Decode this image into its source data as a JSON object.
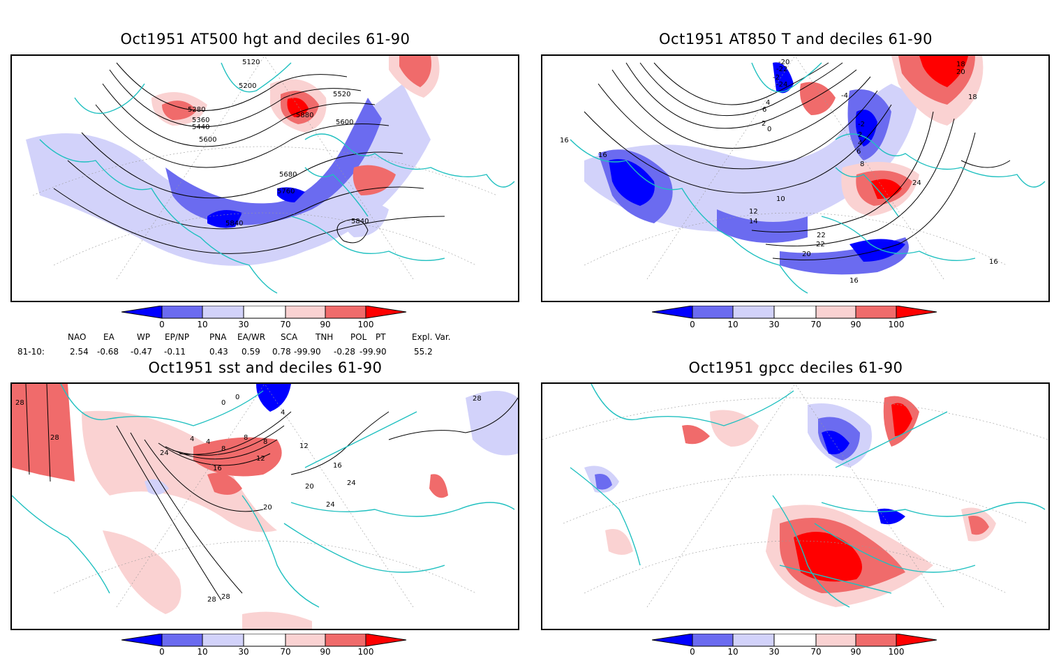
{
  "panels": [
    {
      "id": "at500",
      "title": "Oct1951 AT500 hgt and deciles 61-90",
      "contour_labels": [
        "5120",
        "5200",
        "5280",
        "5360",
        "5440",
        "5520",
        "5600",
        "5680",
        "5760",
        "5840",
        "5880",
        "5600",
        "5840"
      ]
    },
    {
      "id": "at850",
      "title": "Oct1951 AT850 T and deciles 61-90",
      "contour_labels": [
        "-20",
        "-22",
        "-24",
        "-2",
        "0",
        "2",
        "4",
        "6",
        "8",
        "10",
        "12",
        "14",
        "16",
        "18",
        "20",
        "22",
        "24",
        "-4",
        "-2",
        "2",
        "4",
        "6",
        "16",
        "16",
        "18",
        "16",
        "20",
        "22"
      ]
    },
    {
      "id": "sst",
      "title": "Oct1951 sst and deciles 61-90",
      "contour_labels": [
        "28",
        "28",
        "24",
        "20",
        "16",
        "12",
        "8",
        "4",
        "8",
        "4",
        "0",
        "0",
        "4",
        "8",
        "12",
        "20",
        "24",
        "16",
        "28",
        "28",
        "28",
        "24"
      ]
    },
    {
      "id": "gpcc",
      "title": "Oct1951 gpcc deciles 61-90",
      "contour_labels": []
    }
  ],
  "colorbar": {
    "ticks": [
      "0",
      "10",
      "30",
      "70",
      "90",
      "100"
    ],
    "colors": {
      "dark_blue": "#0000ff",
      "mid_blue": "#6b6bf0",
      "light_blue": "#d2d2fa",
      "white": "#ffffff",
      "light_red": "#fad2d2",
      "mid_red": "#f06b6b",
      "dark_red": "#ff0000"
    }
  },
  "indices": {
    "headers": [
      "NAO",
      "EA",
      "WP",
      "EP/NP",
      "PNA",
      "EA/WR",
      "SCA",
      "TNH",
      "POL",
      "PT",
      "Expl. Var."
    ],
    "row_label": "81-10:",
    "values": [
      "2.54",
      "-0.68",
      "-0.47",
      "-0.11",
      "0.43",
      "0.59",
      "0.78",
      "-99.90",
      "-0.28",
      "-99.90",
      "55.2"
    ]
  },
  "map_colors": {
    "coast": "#20c0c0",
    "contour": "#000000",
    "grid": "#999999"
  }
}
